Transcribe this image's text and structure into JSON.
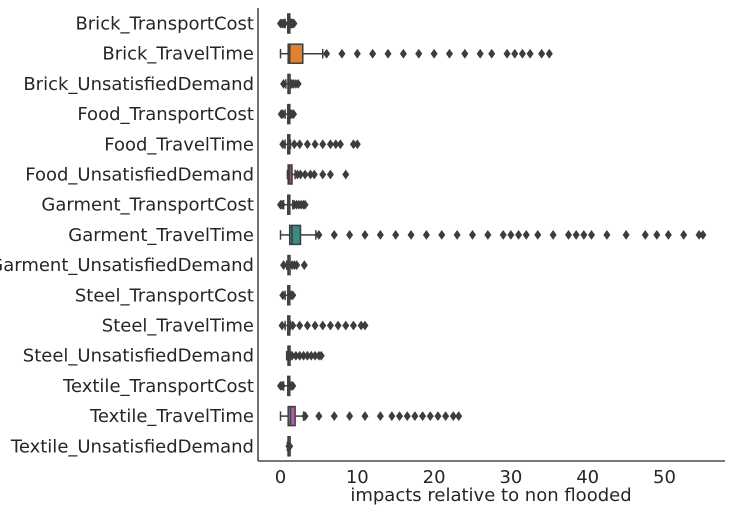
{
  "chart_data": {
    "type": "box",
    "orientation": "horizontal",
    "title": "",
    "xlabel": "impacts relative to non flooded",
    "ylabel": "",
    "xlim": [
      -3,
      58
    ],
    "xticks": [
      0,
      10,
      20,
      30,
      40,
      50
    ],
    "grid": false,
    "categories": [
      "Brick_TransportCost",
      "Brick_TravelTime",
      "Brick_UnsatisfiedDemand",
      "Food_TransportCost",
      "Food_TravelTime",
      "Food_UnsatisfiedDemand",
      "Garment_TransportCost",
      "Garment_TravelTime",
      "Garment_UnsatisfiedDemand",
      "Steel_TransportCost",
      "Steel_TravelTime",
      "Steel_UnsatisfiedDemand",
      "Textile_TransportCost",
      "Textile_TravelTime",
      "Textile_UnsatisfiedDemand"
    ],
    "boxes": [
      {
        "category": "Brick_TransportCost",
        "color": "#3274a1",
        "whislo": 0.6,
        "q1": 0.95,
        "median": 1.0,
        "q3": 1.05,
        "whishi": 1.4,
        "fliers": [
          0.0,
          0.2,
          0.35,
          0.5,
          1.5,
          1.6,
          1.75
        ]
      },
      {
        "category": "Brick_TravelTime",
        "color": "#e1812c",
        "whislo": 0.0,
        "q1": 1.0,
        "median": 1.2,
        "q3": 2.9,
        "whishi": 5.5,
        "fliers": [
          6,
          8,
          10,
          12,
          14,
          16,
          18,
          20,
          22,
          24,
          26,
          27.5,
          29.5,
          30.5,
          31.5,
          32.5,
          34,
          35
        ]
      },
      {
        "category": "Brick_UnsatisfiedDemand",
        "color": "#3a923a",
        "whislo": 0.7,
        "q1": 0.98,
        "median": 1.0,
        "q3": 1.02,
        "whishi": 1.3,
        "fliers": [
          0.4,
          1.5,
          1.7,
          2.0,
          2.3
        ]
      },
      {
        "category": "Food_TransportCost",
        "color": "#c03d3e",
        "whislo": 0.6,
        "q1": 0.95,
        "median": 1.0,
        "q3": 1.05,
        "whishi": 1.3,
        "fliers": [
          0.1,
          0.3,
          1.5,
          1.7
        ]
      },
      {
        "category": "Food_TravelTime",
        "color": "#9372b2",
        "whislo": 0.6,
        "q1": 0.95,
        "median": 1.0,
        "q3": 1.05,
        "whishi": 1.3,
        "fliers": [
          0.3,
          1.8,
          2.5,
          3.5,
          4.5,
          5.5,
          6.5,
          7.2,
          7.8,
          9.5,
          10.0
        ]
      },
      {
        "category": "Food_UnsatisfiedDemand",
        "color": "#845b53",
        "whislo": 0.9,
        "q1": 1.0,
        "median": 1.1,
        "q3": 1.5,
        "whishi": 1.9,
        "fliers": [
          2.2,
          2.6,
          3.2,
          3.9,
          4.4,
          5.5,
          6.5,
          8.5
        ]
      },
      {
        "category": "Garment_TransportCost",
        "color": "#d684bd",
        "whislo": 0.4,
        "q1": 0.95,
        "median": 1.0,
        "q3": 1.05,
        "whishi": 1.6,
        "fliers": [
          0.0,
          0.2,
          1.8,
          2.1,
          2.4,
          2.7,
          3.0,
          3.2
        ]
      },
      {
        "category": "Garment_TravelTime",
        "color": "#3a8a86",
        "whislo": 0.0,
        "q1": 1.2,
        "median": 1.5,
        "q3": 2.6,
        "whishi": 4.6,
        "fliers": [
          5,
          7,
          9,
          11,
          13,
          15,
          17,
          19,
          21,
          23,
          25,
          27,
          29,
          30,
          31,
          32,
          33.5,
          35.5,
          37.5,
          38.5,
          39.5,
          40.5,
          42.5,
          45,
          47.5,
          49,
          50.5,
          52.5,
          54.5,
          55
        ]
      },
      {
        "category": "Garment_UnsatisfiedDemand",
        "color": "#7f7f7f",
        "whislo": 0.8,
        "q1": 0.98,
        "median": 1.0,
        "q3": 1.02,
        "whishi": 1.2,
        "fliers": [
          0.4,
          1.5,
          1.8,
          2.1,
          3.1
        ]
      },
      {
        "category": "Steel_TransportCost",
        "color": "#a9a93f",
        "whislo": 0.6,
        "q1": 0.95,
        "median": 1.0,
        "q3": 1.05,
        "whishi": 1.2,
        "fliers": [
          0.3,
          1.4,
          1.6
        ]
      },
      {
        "category": "Steel_TravelTime",
        "color": "#2aa4c9",
        "whislo": 0.6,
        "q1": 0.95,
        "median": 1.0,
        "q3": 1.05,
        "whishi": 1.3,
        "fliers": [
          0.2,
          1.6,
          2.5,
          3.5,
          4.5,
          5.5,
          6.5,
          7.5,
          8.5,
          9.5,
          10.5,
          11.0
        ]
      },
      {
        "category": "Steel_UnsatisfiedDemand",
        "color": "#3274a1",
        "whislo": 0.8,
        "q1": 0.98,
        "median": 1.0,
        "q3": 1.05,
        "whishi": 1.3,
        "fliers": [
          1.5,
          2.0,
          2.5,
          3.0,
          3.5,
          4.0,
          4.5,
          5.0,
          5.3
        ]
      },
      {
        "category": "Textile_TransportCost",
        "color": "#e1812c",
        "whislo": 0.4,
        "q1": 0.95,
        "median": 1.0,
        "q3": 1.05,
        "whishi": 1.2,
        "fliers": [
          0.0,
          0.2,
          1.4,
          1.6
        ]
      },
      {
        "category": "Textile_TravelTime",
        "color": "#b95bb1",
        "whislo": 0.0,
        "q1": 1.0,
        "median": 1.3,
        "q3": 1.9,
        "whishi": 3.0,
        "fliers": [
          3.2,
          5,
          7,
          9,
          11,
          13,
          14.5,
          15.5,
          16.5,
          17.5,
          18.5,
          19.5,
          20.5,
          21.5,
          22.5,
          23.2
        ]
      },
      {
        "category": "Textile_UnsatisfiedDemand",
        "color": "#3a923a",
        "whislo": 0.9,
        "q1": 0.99,
        "median": 1.0,
        "q3": 1.01,
        "whishi": 1.1,
        "fliers": [
          1.1,
          1.2
        ]
      }
    ]
  }
}
